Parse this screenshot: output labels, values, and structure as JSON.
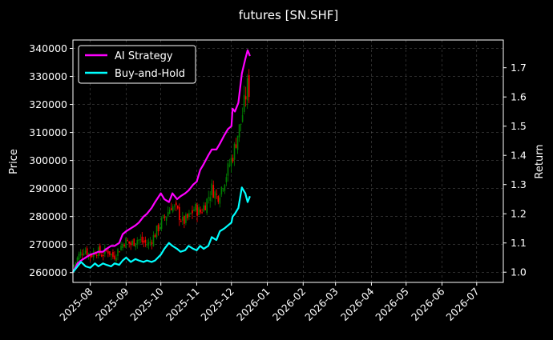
{
  "chart_data": {
    "type": "line",
    "title": "futures [SN.SHF]",
    "ylabel_left": "Price",
    "ylabel_right": "Return",
    "left_axis": {
      "ylim": [
        256500,
        343000
      ],
      "ticks": [
        260000,
        270000,
        280000,
        290000,
        300000,
        310000,
        320000,
        330000,
        340000
      ],
      "tick_labels": [
        "260000",
        "270000",
        "280000",
        "290000",
        "300000",
        "310000",
        "320000",
        "330000",
        "340000"
      ]
    },
    "right_axis": {
      "ylim": [
        0.965,
        1.795
      ],
      "ticks": [
        1.0,
        1.1,
        1.2,
        1.3,
        1.4,
        1.5,
        1.6,
        1.7
      ],
      "tick_labels": [
        "1.0",
        "1.1",
        "1.2",
        "1.3",
        "1.4",
        "1.5",
        "1.6",
        "1.7"
      ]
    },
    "x_axis": {
      "xlim": [
        "2025-07-17",
        "2026-07-24"
      ],
      "ticks": [
        "2025-08-01",
        "2025-09-01",
        "2025-10-01",
        "2025-11-01",
        "2025-12-01",
        "2026-01-01",
        "2026-02-01",
        "2026-03-01",
        "2026-04-01",
        "2026-05-01",
        "2026-06-01",
        "2026-07-01"
      ],
      "tick_labels": [
        "2025-08",
        "2025-09",
        "2025-10",
        "2025-11",
        "2025-12",
        "2026-01",
        "2026-02",
        "2026-03",
        "2026-04",
        "2026-05",
        "2026-06",
        "2026-07"
      ]
    },
    "grid": true,
    "legend_position": "top-left",
    "colors": {
      "background": "#000000",
      "ai_strategy": "#ff00ff",
      "buy_and_hold": "#00ffff",
      "candle_up": "#008000",
      "candle_down": "#ff0000",
      "grid": "#808080"
    },
    "series": [
      {
        "name": "AI Strategy",
        "axis": "right",
        "points": [
          [
            "2025-07-17",
            1.0
          ],
          [
            "2025-07-21",
            1.03
          ],
          [
            "2025-07-24",
            1.04
          ],
          [
            "2025-07-28",
            1.05
          ],
          [
            "2025-08-01",
            1.06
          ],
          [
            "2025-08-05",
            1.065
          ],
          [
            "2025-08-08",
            1.07
          ],
          [
            "2025-08-12",
            1.07
          ],
          [
            "2025-08-15",
            1.08
          ],
          [
            "2025-08-19",
            1.09
          ],
          [
            "2025-08-22",
            1.09
          ],
          [
            "2025-08-26",
            1.1
          ],
          [
            "2025-08-29",
            1.13
          ],
          [
            "2025-09-01",
            1.14
          ],
          [
            "2025-09-05",
            1.15
          ],
          [
            "2025-09-09",
            1.16
          ],
          [
            "2025-09-12",
            1.17
          ],
          [
            "2025-09-16",
            1.19
          ],
          [
            "2025-09-19",
            1.2
          ],
          [
            "2025-09-23",
            1.22
          ],
          [
            "2025-09-26",
            1.24
          ],
          [
            "2025-10-01",
            1.27
          ],
          [
            "2025-10-04",
            1.25
          ],
          [
            "2025-10-08",
            1.24
          ],
          [
            "2025-10-11",
            1.27
          ],
          [
            "2025-10-15",
            1.25
          ],
          [
            "2025-10-18",
            1.26
          ],
          [
            "2025-10-22",
            1.27
          ],
          [
            "2025-10-25",
            1.28
          ],
          [
            "2025-10-29",
            1.3
          ],
          [
            "2025-11-01",
            1.31
          ],
          [
            "2025-11-04",
            1.35
          ],
          [
            "2025-11-07",
            1.37
          ],
          [
            "2025-11-11",
            1.4
          ],
          [
            "2025-11-14",
            1.42
          ],
          [
            "2025-11-18",
            1.42
          ],
          [
            "2025-11-21",
            1.44
          ],
          [
            "2025-11-25",
            1.47
          ],
          [
            "2025-11-28",
            1.49
          ],
          [
            "2025-12-01",
            1.5
          ],
          [
            "2025-12-02",
            1.56
          ],
          [
            "2025-12-04",
            1.55
          ],
          [
            "2025-12-07",
            1.58
          ],
          [
            "2025-12-10",
            1.68
          ],
          [
            "2025-12-13",
            1.73
          ],
          [
            "2025-12-15",
            1.76
          ],
          [
            "2025-12-17",
            1.74
          ]
        ]
      },
      {
        "name": "Buy-and-Hold",
        "axis": "right",
        "points": [
          [
            "2025-07-17",
            1.0
          ],
          [
            "2025-07-21",
            1.02
          ],
          [
            "2025-07-24",
            1.035
          ],
          [
            "2025-07-28",
            1.02
          ],
          [
            "2025-08-01",
            1.015
          ],
          [
            "2025-08-05",
            1.03
          ],
          [
            "2025-08-08",
            1.02
          ],
          [
            "2025-08-12",
            1.03
          ],
          [
            "2025-08-15",
            1.025
          ],
          [
            "2025-08-19",
            1.02
          ],
          [
            "2025-08-22",
            1.03
          ],
          [
            "2025-08-26",
            1.025
          ],
          [
            "2025-08-29",
            1.04
          ],
          [
            "2025-09-01",
            1.05
          ],
          [
            "2025-09-05",
            1.035
          ],
          [
            "2025-09-09",
            1.045
          ],
          [
            "2025-09-12",
            1.04
          ],
          [
            "2025-09-16",
            1.035
          ],
          [
            "2025-09-19",
            1.04
          ],
          [
            "2025-09-23",
            1.035
          ],
          [
            "2025-09-26",
            1.04
          ],
          [
            "2025-10-01",
            1.06
          ],
          [
            "2025-10-04",
            1.08
          ],
          [
            "2025-10-08",
            1.1
          ],
          [
            "2025-10-11",
            1.09
          ],
          [
            "2025-10-15",
            1.08
          ],
          [
            "2025-10-18",
            1.07
          ],
          [
            "2025-10-22",
            1.075
          ],
          [
            "2025-10-25",
            1.09
          ],
          [
            "2025-10-29",
            1.08
          ],
          [
            "2025-11-01",
            1.075
          ],
          [
            "2025-11-04",
            1.09
          ],
          [
            "2025-11-07",
            1.08
          ],
          [
            "2025-11-11",
            1.09
          ],
          [
            "2025-11-14",
            1.12
          ],
          [
            "2025-11-18",
            1.11
          ],
          [
            "2025-11-21",
            1.14
          ],
          [
            "2025-11-25",
            1.15
          ],
          [
            "2025-11-28",
            1.16
          ],
          [
            "2025-12-01",
            1.17
          ],
          [
            "2025-12-02",
            1.19
          ],
          [
            "2025-12-04",
            1.2
          ],
          [
            "2025-12-07",
            1.22
          ],
          [
            "2025-12-10",
            1.29
          ],
          [
            "2025-12-13",
            1.27
          ],
          [
            "2025-12-15",
            1.24
          ],
          [
            "2025-12-17",
            1.26
          ]
        ]
      }
    ],
    "price_candles": {
      "axis": "left",
      "close_points": [
        [
          "2025-07-17",
          262000
        ],
        [
          "2025-07-22",
          266000
        ],
        [
          "2025-07-27",
          268500
        ],
        [
          "2025-08-01",
          266000
        ],
        [
          "2025-08-06",
          268000
        ],
        [
          "2025-08-11",
          266500
        ],
        [
          "2025-08-16",
          268000
        ],
        [
          "2025-08-21",
          265500
        ],
        [
          "2025-08-26",
          268500
        ],
        [
          "2025-08-31",
          271500
        ],
        [
          "2025-09-05",
          270000
        ],
        [
          "2025-09-10",
          272000
        ],
        [
          "2025-09-15",
          271000
        ],
        [
          "2025-09-20",
          270000
        ],
        [
          "2025-09-25",
          273000
        ],
        [
          "2025-09-30",
          277000
        ],
        [
          "2025-10-05",
          280000
        ],
        [
          "2025-10-10",
          284000
        ],
        [
          "2025-10-15",
          282000
        ],
        [
          "2025-10-20",
          278000
        ],
        [
          "2025-10-25",
          279500
        ],
        [
          "2025-10-30",
          283000
        ],
        [
          "2025-11-04",
          281500
        ],
        [
          "2025-11-09",
          285000
        ],
        [
          "2025-11-14",
          290000
        ],
        [
          "2025-11-19",
          287000
        ],
        [
          "2025-11-24",
          292000
        ],
        [
          "2025-11-29",
          298000
        ],
        [
          "2025-12-03",
          303000
        ],
        [
          "2025-12-06",
          309000
        ],
        [
          "2025-12-09",
          313000
        ],
        [
          "2025-12-12",
          320000
        ],
        [
          "2025-12-15",
          327000
        ],
        [
          "2025-12-17",
          324000
        ]
      ]
    }
  },
  "legend": {
    "items": [
      {
        "label": "AI Strategy",
        "color": "#ff00ff"
      },
      {
        "label": "Buy-and-Hold",
        "color": "#00ffff"
      }
    ]
  }
}
